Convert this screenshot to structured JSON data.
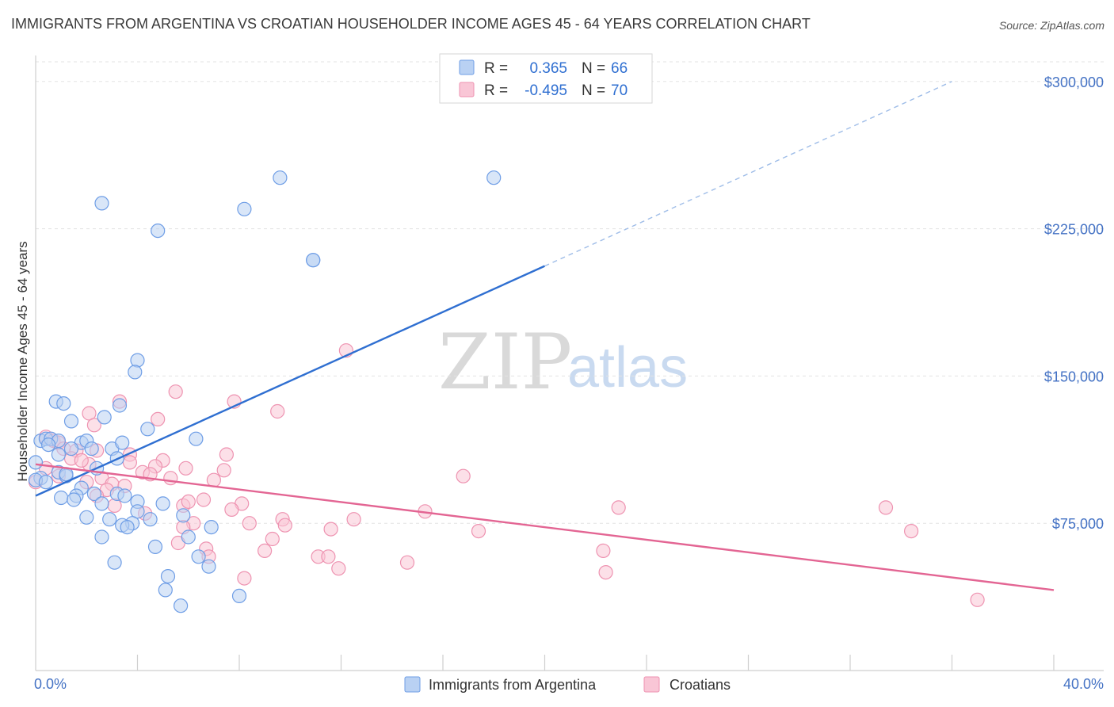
{
  "header": {
    "title": "IMMIGRANTS FROM ARGENTINA VS CROATIAN HOUSEHOLDER INCOME AGES 45 - 64 YEARS CORRELATION CHART",
    "source": "Source: ZipAtlas.com"
  },
  "watermark": {
    "part1": "ZIP",
    "part2": "atlas"
  },
  "legend": {
    "r_label": "R =",
    "n_label": "N =",
    "rows": [
      {
        "r": "0.365",
        "n": "66"
      },
      {
        "r": "-0.495",
        "n": "70"
      }
    ]
  },
  "colors": {
    "argentina_fill": "#b9d1f3",
    "argentina_stroke": "#6f9ee6",
    "argentina_line": "#2f6fd1",
    "croatian_fill": "#f9c6d6",
    "croatian_stroke": "#ee93b1",
    "croatian_line": "#e36593",
    "tick_color": "#4472c4",
    "grid": "#e3e3e3"
  },
  "chart_data": {
    "type": "scatter",
    "title": "IMMIGRANTS FROM ARGENTINA VS CROATIAN HOUSEHOLDER INCOME AGES 45 - 64 YEARS CORRELATION CHART",
    "xlabel": "",
    "ylabel": "Householder Income Ages 45 - 64 years",
    "xlim": [
      0,
      0.4
    ],
    "ylim": [
      0,
      310000
    ],
    "x_tick_labels": [
      "0.0%",
      "40.0%"
    ],
    "y_ticks": [
      75000,
      150000,
      225000,
      300000
    ],
    "y_tick_labels": [
      "$75,000",
      "$150,000",
      "$225,000",
      "$300,000"
    ],
    "grid": true,
    "legend_position": "top-center",
    "series": [
      {
        "name": "Immigrants from Argentina",
        "r": 0.365,
        "n": 66,
        "trend": {
          "x0": 0.0,
          "y0": 89000,
          "x1": 0.2,
          "y1": 206000,
          "dashed_to_x": 0.36,
          "dashed_to_y": 300000
        },
        "points": [
          [
            0.026,
            238000
          ],
          [
            0.048,
            224000
          ],
          [
            0.082,
            235000
          ],
          [
            0.096,
            251000
          ],
          [
            0.18,
            251000
          ],
          [
            0.109,
            209000
          ],
          [
            0.109,
            209000
          ],
          [
            0.04,
            158000
          ],
          [
            0.039,
            152000
          ],
          [
            0.008,
            137000
          ],
          [
            0.011,
            136000
          ],
          [
            0.033,
            135000
          ],
          [
            0.014,
            127000
          ],
          [
            0.027,
            129000
          ],
          [
            0.044,
            123000
          ],
          [
            0.063,
            118000
          ],
          [
            0.002,
            117000
          ],
          [
            0.004,
            118000
          ],
          [
            0.006,
            118000
          ],
          [
            0.009,
            117000
          ],
          [
            0.018,
            116000
          ],
          [
            0.02,
            117000
          ],
          [
            0.022,
            113000
          ],
          [
            0.014,
            113000
          ],
          [
            0.03,
            113000
          ],
          [
            0.034,
            116000
          ],
          [
            0.005,
            115000
          ],
          [
            0.009,
            110000
          ],
          [
            0.032,
            108000
          ],
          [
            0.0,
            106000
          ],
          [
            0.024,
            103000
          ],
          [
            0.002,
            98000
          ],
          [
            0.009,
            101000
          ],
          [
            0.012,
            99000
          ],
          [
            0.018,
            93000
          ],
          [
            0.032,
            90000
          ],
          [
            0.023,
            90000
          ],
          [
            0.016,
            89000
          ],
          [
            0.01,
            88000
          ],
          [
            0.015,
            87000
          ],
          [
            0.026,
            85000
          ],
          [
            0.035,
            89000
          ],
          [
            0.04,
            86000
          ],
          [
            0.05,
            85000
          ],
          [
            0.04,
            81000
          ],
          [
            0.058,
            79000
          ],
          [
            0.02,
            78000
          ],
          [
            0.029,
            77000
          ],
          [
            0.038,
            75000
          ],
          [
            0.034,
            74000
          ],
          [
            0.045,
            77000
          ],
          [
            0.036,
            73000
          ],
          [
            0.026,
            68000
          ],
          [
            0.06,
            68000
          ],
          [
            0.069,
            73000
          ],
          [
            0.047,
            63000
          ],
          [
            0.064,
            58000
          ],
          [
            0.068,
            53000
          ],
          [
            0.031,
            55000
          ],
          [
            0.052,
            48000
          ],
          [
            0.051,
            41000
          ],
          [
            0.08,
            38000
          ],
          [
            0.057,
            33000
          ],
          [
            0.0,
            97000
          ],
          [
            0.004,
            96000
          ],
          [
            0.012,
            100000
          ]
        ]
      },
      {
        "name": "Croatians",
        "r": -0.495,
        "n": 70,
        "trend": {
          "x0": 0.0,
          "y0": 105000,
          "x1": 0.4,
          "y1": 41000
        },
        "points": [
          [
            0.122,
            163000
          ],
          [
            0.055,
            142000
          ],
          [
            0.033,
            137000
          ],
          [
            0.078,
            137000
          ],
          [
            0.095,
            132000
          ],
          [
            0.021,
            131000
          ],
          [
            0.048,
            128000
          ],
          [
            0.023,
            125000
          ],
          [
            0.004,
            119000
          ],
          [
            0.007,
            117000
          ],
          [
            0.009,
            116000
          ],
          [
            0.011,
            113000
          ],
          [
            0.016,
            112000
          ],
          [
            0.024,
            112000
          ],
          [
            0.037,
            110000
          ],
          [
            0.075,
            110000
          ],
          [
            0.014,
            108000
          ],
          [
            0.05,
            107000
          ],
          [
            0.021,
            105000
          ],
          [
            0.047,
            104000
          ],
          [
            0.059,
            103000
          ],
          [
            0.074,
            102000
          ],
          [
            0.042,
            101000
          ],
          [
            0.045,
            100000
          ],
          [
            0.026,
            98000
          ],
          [
            0.053,
            98000
          ],
          [
            0.07,
            97000
          ],
          [
            0.168,
            99000
          ],
          [
            0.02,
            96000
          ],
          [
            0.03,
            95000
          ],
          [
            0.035,
            94000
          ],
          [
            0.028,
            92000
          ],
          [
            0.024,
            89000
          ],
          [
            0.066,
            87000
          ],
          [
            0.081,
            85000
          ],
          [
            0.058,
            84000
          ],
          [
            0.077,
            82000
          ],
          [
            0.229,
            83000
          ],
          [
            0.334,
            83000
          ],
          [
            0.153,
            81000
          ],
          [
            0.043,
            80000
          ],
          [
            0.125,
            77000
          ],
          [
            0.097,
            77000
          ],
          [
            0.084,
            75000
          ],
          [
            0.062,
            75000
          ],
          [
            0.098,
            74000
          ],
          [
            0.058,
            73000
          ],
          [
            0.116,
            72000
          ],
          [
            0.174,
            71000
          ],
          [
            0.344,
            71000
          ],
          [
            0.093,
            67000
          ],
          [
            0.056,
            65000
          ],
          [
            0.067,
            62000
          ],
          [
            0.09,
            61000
          ],
          [
            0.223,
            61000
          ],
          [
            0.111,
            58000
          ],
          [
            0.115,
            58000
          ],
          [
            0.068,
            58000
          ],
          [
            0.146,
            55000
          ],
          [
            0.224,
            50000
          ],
          [
            0.119,
            52000
          ],
          [
            0.082,
            47000
          ],
          [
            0.37,
            36000
          ],
          [
            0.004,
            103000
          ],
          [
            0.009,
            99000
          ],
          [
            0.0,
            96000
          ],
          [
            0.018,
            107000
          ],
          [
            0.031,
            84000
          ],
          [
            0.037,
            106000
          ],
          [
            0.06,
            86000
          ]
        ]
      }
    ]
  },
  "bottom_legend": {
    "items": [
      {
        "label": "Immigrants from Argentina"
      },
      {
        "label": "Croatians"
      }
    ]
  }
}
